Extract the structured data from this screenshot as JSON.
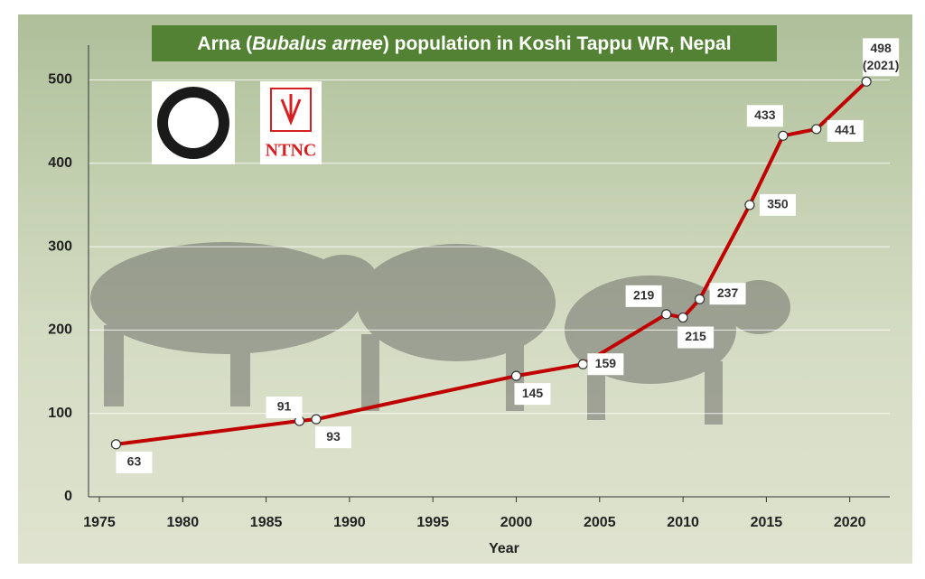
{
  "chart_data": {
    "type": "line",
    "title": [
      "Arna (",
      "Bubalus arnee",
      ") population  in Koshi Tappu WR, Nepal"
    ],
    "x_label": "Year",
    "logo_text": "NTNC",
    "annotation": "(2021)",
    "x": [
      1976,
      1987,
      1988,
      2000,
      2004,
      2009,
      2010,
      2011,
      2014,
      2016,
      2018,
      2021
    ],
    "series": [
      {
        "name": "Arna population",
        "color": "#c00000",
        "values": [
          63,
          91,
          93,
          145,
          159,
          219,
          215,
          237,
          350,
          433,
          441,
          498
        ]
      }
    ],
    "xlim": [
      1974.35,
      2022.4
    ],
    "ylim": [
      0,
      520
    ],
    "xticks": [
      1975,
      1980,
      1985,
      1990,
      1995,
      2000,
      2005,
      2010,
      2015,
      2020
    ],
    "yticks": [
      0,
      100,
      200,
      300,
      400,
      500
    ],
    "grid": true
  }
}
